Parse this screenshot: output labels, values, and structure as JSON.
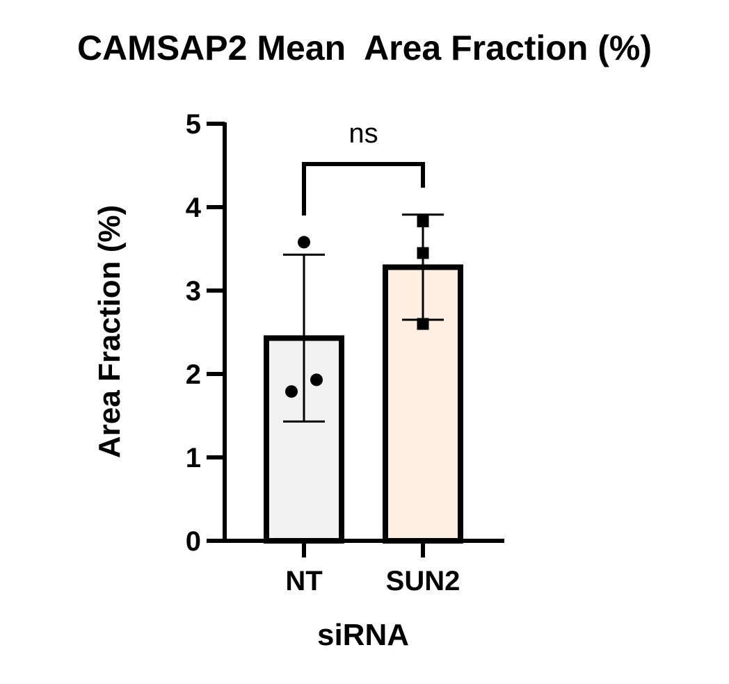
{
  "chart_data": {
    "type": "bar",
    "title": "CAMSAP2 Mean  Area Fraction (%)",
    "xlabel": "siRNA",
    "ylabel": "Area Fraction (%)",
    "categories": [
      "NT",
      "SUN2"
    ],
    "values": [
      2.43,
      3.28
    ],
    "error": [
      1.0,
      0.63
    ],
    "points": [
      [
        3.58,
        1.79,
        1.93
      ],
      [
        3.83,
        3.45,
        2.6
      ]
    ],
    "ylim": [
      0,
      5
    ],
    "yticks": [
      0,
      1,
      2,
      3,
      4,
      5
    ],
    "bar_colors": [
      "#f2f2f2",
      "#feefe2"
    ],
    "marker_shapes": [
      "circle",
      "square"
    ],
    "significance": {
      "between": [
        "NT",
        "SUN2"
      ],
      "label": "ns"
    },
    "grid": false
  }
}
